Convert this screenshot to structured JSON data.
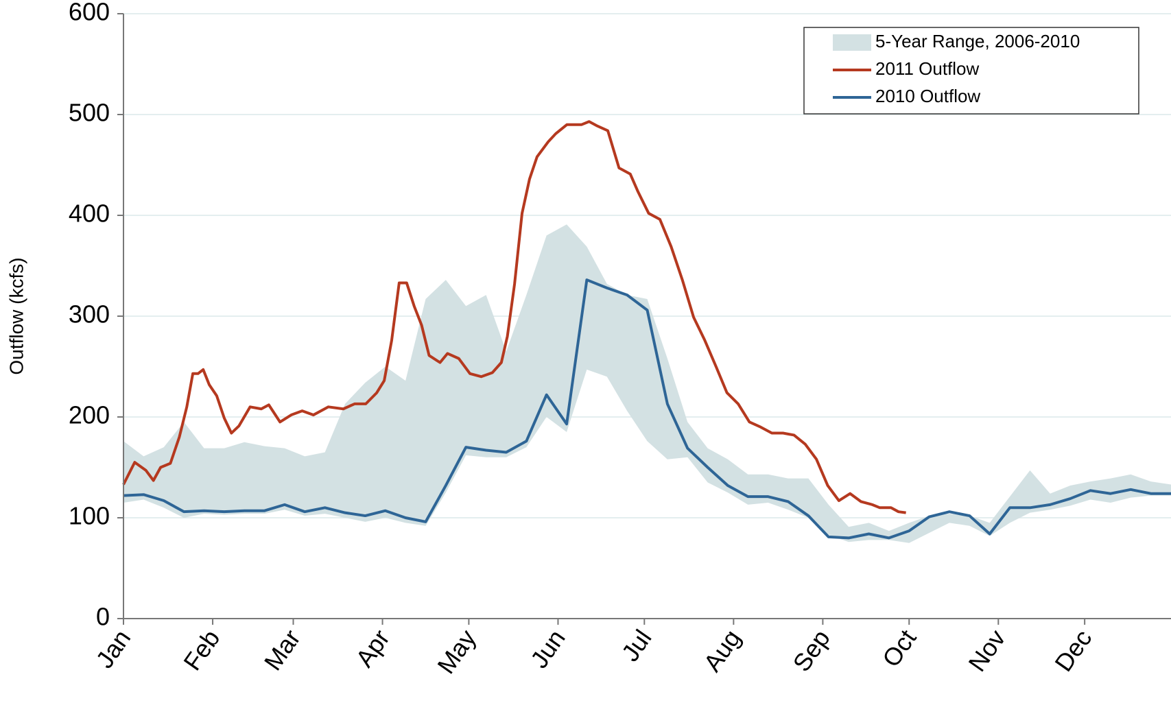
{
  "chart_data": {
    "type": "line",
    "y_label": "Outflow (kcfs)",
    "xlim": [
      0,
      364
    ],
    "ylim": [
      0,
      600
    ],
    "yticks": [
      0,
      100,
      200,
      300,
      400,
      500,
      600
    ],
    "xticks": [
      {
        "value": 0,
        "label": "Jan"
      },
      {
        "value": 31,
        "label": "Feb"
      },
      {
        "value": 59,
        "label": "Mar"
      },
      {
        "value": 90,
        "label": "Apr"
      },
      {
        "value": 120,
        "label": "May"
      },
      {
        "value": 151,
        "label": "Jun"
      },
      {
        "value": 181,
        "label": "Jul"
      },
      {
        "value": 212,
        "label": "Aug"
      },
      {
        "value": 243,
        "label": "Sep"
      },
      {
        "value": 273,
        "label": "Oct"
      },
      {
        "value": 304,
        "label": "Nov"
      },
      {
        "value": 334,
        "label": "Dec"
      }
    ],
    "grid": true,
    "legend": "top-right",
    "series": [
      {
        "name": "5-Year Range, 2006-2010",
        "color": "#d3e1e3",
        "kind": "range",
        "x": [
          0,
          7,
          14,
          21,
          28,
          35,
          42,
          49,
          56,
          63,
          70,
          77,
          84,
          91,
          98,
          105,
          112,
          119,
          126,
          133,
          140,
          147,
          154,
          161,
          168,
          175,
          182,
          189,
          196,
          203,
          210,
          217,
          224,
          231,
          238,
          245,
          252,
          259,
          266,
          273,
          280,
          287,
          294,
          301,
          308,
          315,
          322,
          329,
          336,
          343,
          350,
          357,
          364
        ],
        "low": [
          115,
          118,
          110,
          100,
          104,
          103,
          104,
          104,
          108,
          102,
          104,
          100,
          96,
          100,
          95,
          92,
          125,
          162,
          160,
          160,
          170,
          200,
          185,
          247,
          240,
          206,
          176,
          158,
          160,
          135,
          125,
          113,
          115,
          108,
          100,
          83,
          76,
          78,
          78,
          75,
          85,
          95,
          92,
          82,
          95,
          105,
          108,
          112,
          118,
          115,
          120,
          122,
          122
        ],
        "high": [
          176,
          161,
          170,
          195,
          169,
          169,
          175,
          171,
          169,
          161,
          165,
          213,
          234,
          250,
          236,
          317,
          336,
          310,
          321,
          265,
          321,
          380,
          391,
          369,
          332,
          321,
          317,
          258,
          195,
          169,
          158,
          143,
          143,
          139,
          139,
          113,
          91,
          95,
          87,
          95,
          102,
          104,
          102,
          95,
          121,
          147,
          124,
          132,
          136,
          139,
          143,
          136,
          133
        ]
      },
      {
        "name": "2011 Outflow",
        "color": "#b5391f",
        "x": [
          0,
          3.9,
          7.8,
          10.4,
          12.9,
          16.3,
          19.4,
          22.0,
          24.1,
          25.9,
          27.7,
          29.8,
          32.4,
          35.0,
          37.5,
          40.1,
          44.0,
          47.9,
          50.5,
          54.4,
          58.3,
          62.1,
          66.0,
          71.2,
          76.4,
          80.3,
          84.2,
          88.0,
          90.6,
          93.2,
          95.8,
          98.4,
          101.0,
          103.6,
          106.2,
          110.0,
          112.6,
          116.5,
          120.4,
          124.3,
          128.2,
          131.3,
          133.4,
          135.9,
          138.5,
          141.1,
          143.7,
          147.6,
          150.2,
          154.1,
          159.2,
          161.8,
          164.4,
          168.3,
          172.2,
          176.1,
          178.7,
          182.5,
          186.4,
          190.3,
          194.2,
          198.1,
          202.0,
          205.9,
          209.7,
          213.6,
          217.5,
          221.4,
          225.3,
          229.2,
          233.0,
          236.9,
          240.8,
          244.7,
          248.6,
          252.5,
          256.3,
          260.2,
          262.8,
          266.7,
          269.3,
          271.9
        ],
        "values": [
          133,
          155,
          147,
          137,
          150,
          154,
          180,
          210,
          243,
          243,
          247,
          232,
          221,
          199,
          184,
          191,
          210,
          208,
          212,
          195,
          202,
          206,
          202,
          210,
          208,
          213,
          213,
          224,
          236,
          276,
          333,
          333,
          310,
          291,
          261,
          254,
          263,
          258,
          243,
          240,
          244,
          254,
          280,
          332,
          402,
          436,
          458,
          473,
          481,
          490,
          490,
          493,
          489,
          484,
          447,
          441,
          424,
          402,
          396,
          369,
          336,
          299,
          276,
          250,
          224,
          213,
          195,
          190,
          184,
          184,
          182,
          173,
          158,
          132,
          117,
          124,
          116,
          113,
          110,
          110,
          106,
          105
        ]
      },
      {
        "name": "2010 Outflow",
        "color": "#2e6596",
        "x": [
          0,
          7,
          14,
          21,
          28,
          35,
          42,
          49,
          56,
          63,
          70,
          77,
          84,
          91,
          98,
          105,
          112,
          119,
          126,
          133,
          140,
          147,
          154,
          161,
          168,
          175,
          182,
          189,
          196,
          203,
          210,
          217,
          224,
          231,
          238,
          245,
          252,
          259,
          266,
          273,
          280,
          287,
          294,
          301,
          308,
          315,
          322,
          329,
          336,
          343,
          350,
          357,
          364
        ],
        "values": [
          122,
          123,
          117,
          106,
          107,
          106,
          107,
          107,
          113,
          106,
          110,
          105,
          102,
          107,
          100,
          96,
          132,
          170,
          167,
          165,
          176,
          222,
          193,
          336,
          328,
          321,
          306,
          213,
          169,
          150,
          132,
          121,
          121,
          116,
          102,
          81,
          80,
          84,
          80,
          87,
          101,
          106,
          102,
          84,
          110,
          110,
          113,
          119,
          127,
          124,
          128,
          124,
          124
        ]
      }
    ]
  }
}
